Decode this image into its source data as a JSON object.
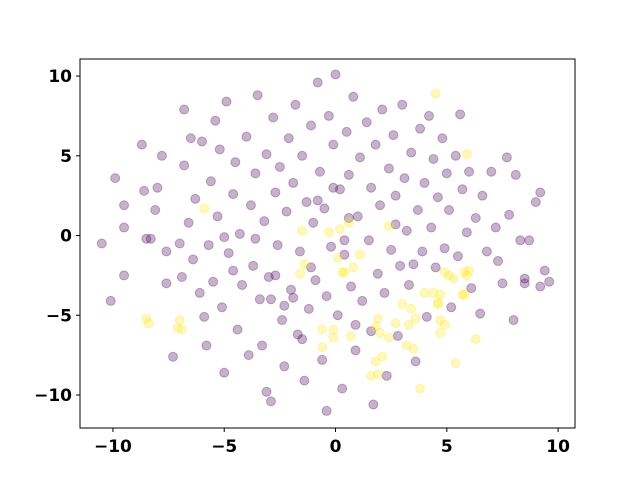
{
  "chart_data": {
    "type": "scatter",
    "xlim": [
      -11.48,
      10.76
    ],
    "ylim": [
      -12.07,
      11.07
    ],
    "xticks": [
      {
        "value": -10,
        "label": "−10"
      },
      {
        "value": -5,
        "label": "−5"
      },
      0,
      5,
      10
    ],
    "yticks": [
      {
        "value": -10,
        "label": "−10"
      },
      {
        "value": -5,
        "label": "−5"
      },
      0,
      5,
      10
    ],
    "grid": false,
    "opacity": 0.3,
    "series": [
      {
        "color": "#440154",
        "x": [
          -10.5,
          -10.1,
          -9.9,
          -9.5,
          -9.5,
          -9.5,
          -8.7,
          -8.5,
          -8.6,
          -8.3,
          -8.1,
          -8.0,
          -7.8,
          -7.6,
          -7.6,
          -7.3,
          -7.0,
          -6.9,
          -6.8,
          -6.8,
          -6.6,
          -6.5,
          -6.4,
          -6.3,
          -6.1,
          -6.0,
          -5.9,
          -5.8,
          -5.7,
          -5.6,
          -5.5,
          -5.4,
          -5.3,
          -5.2,
          -5.1,
          -5.0,
          -4.9,
          -4.8,
          -4.6,
          -4.5,
          -4.4,
          -4.3,
          -4.2,
          -4.0,
          -3.9,
          -3.8,
          -3.7,
          -3.6,
          -3.5,
          -3.4,
          -3.3,
          -3.2,
          -3.1,
          -3.0,
          -2.9,
          -2.8,
          -2.7,
          -2.6,
          -2.5,
          -2.4,
          -2.3,
          -2.2,
          -2.1,
          -2.0,
          -1.9,
          -1.8,
          -1.7,
          -1.6,
          -1.5,
          -1.4,
          -1.3,
          -1.2,
          -1.1,
          -1.0,
          -0.9,
          -0.8,
          -0.7,
          -0.6,
          -0.5,
          -0.4,
          -0.3,
          -0.2,
          -0.1,
          0.0,
          0.1,
          0.2,
          0.3,
          0.4,
          0.5,
          0.6,
          0.7,
          0.8,
          0.9,
          1.0,
          1.1,
          1.2,
          -0.4,
          1.4,
          1.5,
          1.6,
          1.7,
          1.8,
          1.9,
          2.0,
          2.1,
          2.2,
          2.3,
          2.4,
          2.5,
          2.6,
          2.7,
          2.8,
          2.9,
          3.0,
          3.1,
          3.2,
          3.3,
          3.4,
          3.6,
          3.7,
          3.8,
          3.9,
          4.0,
          4.1,
          4.2,
          4.3,
          4.4,
          4.5,
          4.6,
          4.8,
          4.9,
          5.0,
          5.1,
          5.2,
          5.4,
          5.5,
          5.6,
          5.7,
          5.9,
          6.0,
          6.1,
          6.3,
          6.5,
          6.6,
          6.8,
          7.0,
          7.2,
          7.3,
          7.5,
          7.7,
          7.8,
          8.0,
          8.1,
          8.3,
          8.5,
          8.7,
          9.0,
          9.2,
          9.4,
          9.2,
          9.6,
          8.5,
          -2.7,
          -1.1,
          0.4,
          -0.1,
          -3.6,
          -5.0,
          -1.5,
          -2.3,
          0.9,
          1.6,
          -4.6,
          -3.1,
          2.7,
          3.5,
          -0.8,
          -2.9,
          -1.9,
          0.6
        ],
        "y": [
          -0.5,
          -4.1,
          3.6,
          -2.5,
          1.9,
          0.5,
          5.7,
          -0.2,
          2.8,
          -0.2,
          1.6,
          3.0,
          5.0,
          -1.0,
          -3.0,
          -7.6,
          -0.5,
          -2.6,
          7.9,
          4.4,
          0.8,
          6.1,
          -1.5,
          2.3,
          -3.6,
          5.9,
          -5.1,
          -6.9,
          -0.6,
          3.4,
          -2.9,
          7.2,
          1.2,
          5.4,
          -4.5,
          -8.6,
          8.4,
          -1.1,
          2.6,
          4.6,
          -5.9,
          0.1,
          -3.1,
          6.2,
          -7.5,
          1.9,
          -1.9,
          3.9,
          8.8,
          -4.0,
          -6.9,
          0.9,
          5.1,
          -2.6,
          -10.4,
          7.4,
          2.7,
          -0.6,
          4.3,
          -5.3,
          -8.2,
          1.5,
          6.1,
          -3.4,
          3.3,
          8.2,
          -6.2,
          -1.0,
          5.0,
          -9.1,
          2.1,
          -4.6,
          6.9,
          0.8,
          -2.8,
          9.6,
          4.0,
          -7.8,
          1.7,
          -3.8,
          7.5,
          -0.7,
          5.7,
          10.1,
          -5.0,
          2.9,
          -9.6,
          -1.2,
          6.5,
          3.8,
          -3.2,
          8.7,
          -7.2,
          1.2,
          4.9,
          -4.1,
          -11.0,
          7.1,
          -0.3,
          3.0,
          -10.6,
          5.7,
          -2.4,
          1.9,
          7.9,
          -3.6,
          -8.8,
          4.2,
          -0.9,
          6.3,
          2.5,
          -6.3,
          -1.9,
          8.2,
          3.6,
          0.3,
          -3.1,
          5.2,
          -7.9,
          1.6,
          6.7,
          -1.0,
          3.3,
          -5.1,
          7.5,
          0.5,
          4.8,
          -2.0,
          2.4,
          6.1,
          -0.8,
          3.9,
          1.6,
          -4.5,
          5.0,
          -1.3,
          7.6,
          2.9,
          0.2,
          4.0,
          -3.3,
          1.1,
          -4.9,
          2.5,
          -1.0,
          4.0,
          0.5,
          -1.6,
          -3.0,
          4.9,
          1.3,
          -5.3,
          3.8,
          -0.3,
          -3.0,
          -0.3,
          2.1,
          2.7,
          -2.2,
          -3.2,
          -2.9,
          -2.7,
          -2.5,
          -2.0,
          -0.3,
          3.0,
          -0.2,
          -0.1,
          -6.5,
          -4.4,
          -5.6,
          -6.0,
          -2.2,
          -9.8,
          0.7,
          -1.8,
          2.2,
          -4.0,
          -3.9,
          1.1
        ]
      },
      {
        "color": "#fde725",
        "x": [
          4.5,
          5.9,
          -5.9,
          -1.4,
          -1.6,
          0.1,
          0.8,
          0.3,
          -0.3,
          0.2,
          0.6,
          -1.5,
          1.1,
          0.4,
          2.4,
          -8.5,
          -8.4,
          -7.0,
          -6.9,
          -7.1,
          -0.6,
          -0.1,
          -0.1,
          0.7,
          -0.6,
          1.9,
          1.8,
          2.0,
          2.4,
          2.7,
          3.0,
          3.4,
          3.6,
          3.3,
          4.0,
          4.4,
          4.6,
          4.7,
          4.7,
          4.9,
          5.1,
          5.3,
          5.8,
          5.7,
          5.9,
          6.0,
          5.8,
          4.9,
          4.7,
          3.2,
          3.5,
          2.1,
          1.8,
          1.9,
          1.6,
          3.8,
          5.4,
          6.3,
          4.6
        ],
        "y": [
          8.9,
          5.1,
          1.7,
          -1.8,
          -2.4,
          -1.4,
          -2.0,
          -2.3,
          0.2,
          0.4,
          0.8,
          0.3,
          -1.2,
          -2.3,
          0.6,
          -5.2,
          -5.5,
          -5.3,
          -5.9,
          -5.8,
          -5.9,
          -5.9,
          -6.4,
          -6.3,
          -7.0,
          -5.2,
          -5.7,
          -6.1,
          -6.4,
          -5.5,
          -4.3,
          -4.6,
          -5.2,
          -5.6,
          -3.6,
          -3.6,
          -4.2,
          -3.7,
          -5.3,
          -2.3,
          -2.5,
          -2.7,
          -2.3,
          -3.7,
          -2.5,
          -2.2,
          -3.7,
          -5.6,
          -6.1,
          -6.9,
          -7.1,
          -7.6,
          -7.9,
          -8.7,
          -8.8,
          -9.6,
          -8.0,
          -6.5,
          -4.3
        ]
      }
    ]
  }
}
